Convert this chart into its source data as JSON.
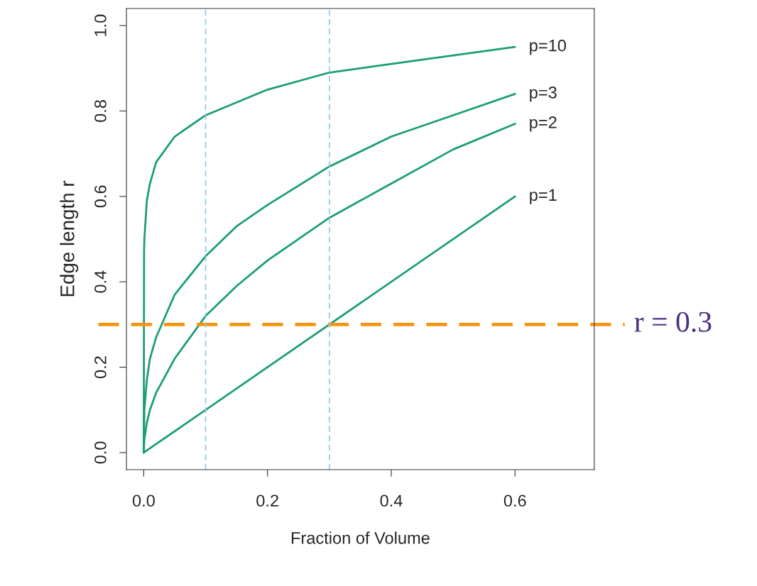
{
  "chart_data": {
    "type": "line",
    "xlabel": "Fraction of Volume",
    "ylabel": "Edge length r",
    "xlim": [
      -0.028,
      0.728
    ],
    "ylim": [
      -0.04,
      1.04
    ],
    "xticks": [
      {
        "value": 0,
        "label": "0.0"
      },
      0.2,
      0.4,
      0.6
    ],
    "yticks": [
      {
        "value": 0,
        "label": "0.0"
      },
      0.2,
      0.4,
      0.6,
      0.8,
      {
        "value": 1,
        "label": "1.0"
      }
    ],
    "grid": false,
    "marker": "none",
    "line_style": "solid",
    "series": [
      {
        "name": "p=10",
        "color": "#1b9e77",
        "x": [
          0,
          0.0005,
          0.001,
          0.005,
          0.01,
          0.02,
          0.05,
          0.1,
          0.2,
          0.3,
          0.4,
          0.5,
          0.6
        ],
        "values": [
          0,
          0.47,
          0.5,
          0.59,
          0.63,
          0.68,
          0.74,
          0.79,
          0.85,
          0.89,
          0.91,
          0.93,
          0.95
        ]
      },
      {
        "name": "p=3",
        "color": "#1b9e77",
        "x": [
          0,
          0.001,
          0.005,
          0.01,
          0.02,
          0.05,
          0.1,
          0.15,
          0.2,
          0.3,
          0.4,
          0.5,
          0.6
        ],
        "values": [
          0,
          0.1,
          0.17,
          0.22,
          0.27,
          0.37,
          0.46,
          0.53,
          0.58,
          0.67,
          0.74,
          0.79,
          0.84
        ]
      },
      {
        "name": "p=2",
        "color": "#1b9e77",
        "x": [
          0,
          0.001,
          0.005,
          0.01,
          0.02,
          0.05,
          0.1,
          0.15,
          0.2,
          0.3,
          0.4,
          0.5,
          0.6
        ],
        "values": [
          0,
          0.03,
          0.07,
          0.1,
          0.14,
          0.22,
          0.32,
          0.39,
          0.45,
          0.55,
          0.63,
          0.71,
          0.77
        ]
      },
      {
        "name": "p=1",
        "color": "#1b9e77",
        "x": [
          0,
          0.6
        ],
        "values": [
          0,
          0.6
        ]
      }
    ],
    "ref_lines": [
      {
        "axis": "y",
        "value": 0.3,
        "label": "r = 0.3",
        "color": "#f5950f",
        "line_style": "dashed"
      },
      {
        "axis": "x",
        "value": 0.1,
        "color": "#8ecae6",
        "line_style": "dashed"
      },
      {
        "axis": "x",
        "value": 0.3,
        "color": "#8ecae6",
        "line_style": "dashed"
      }
    ]
  }
}
